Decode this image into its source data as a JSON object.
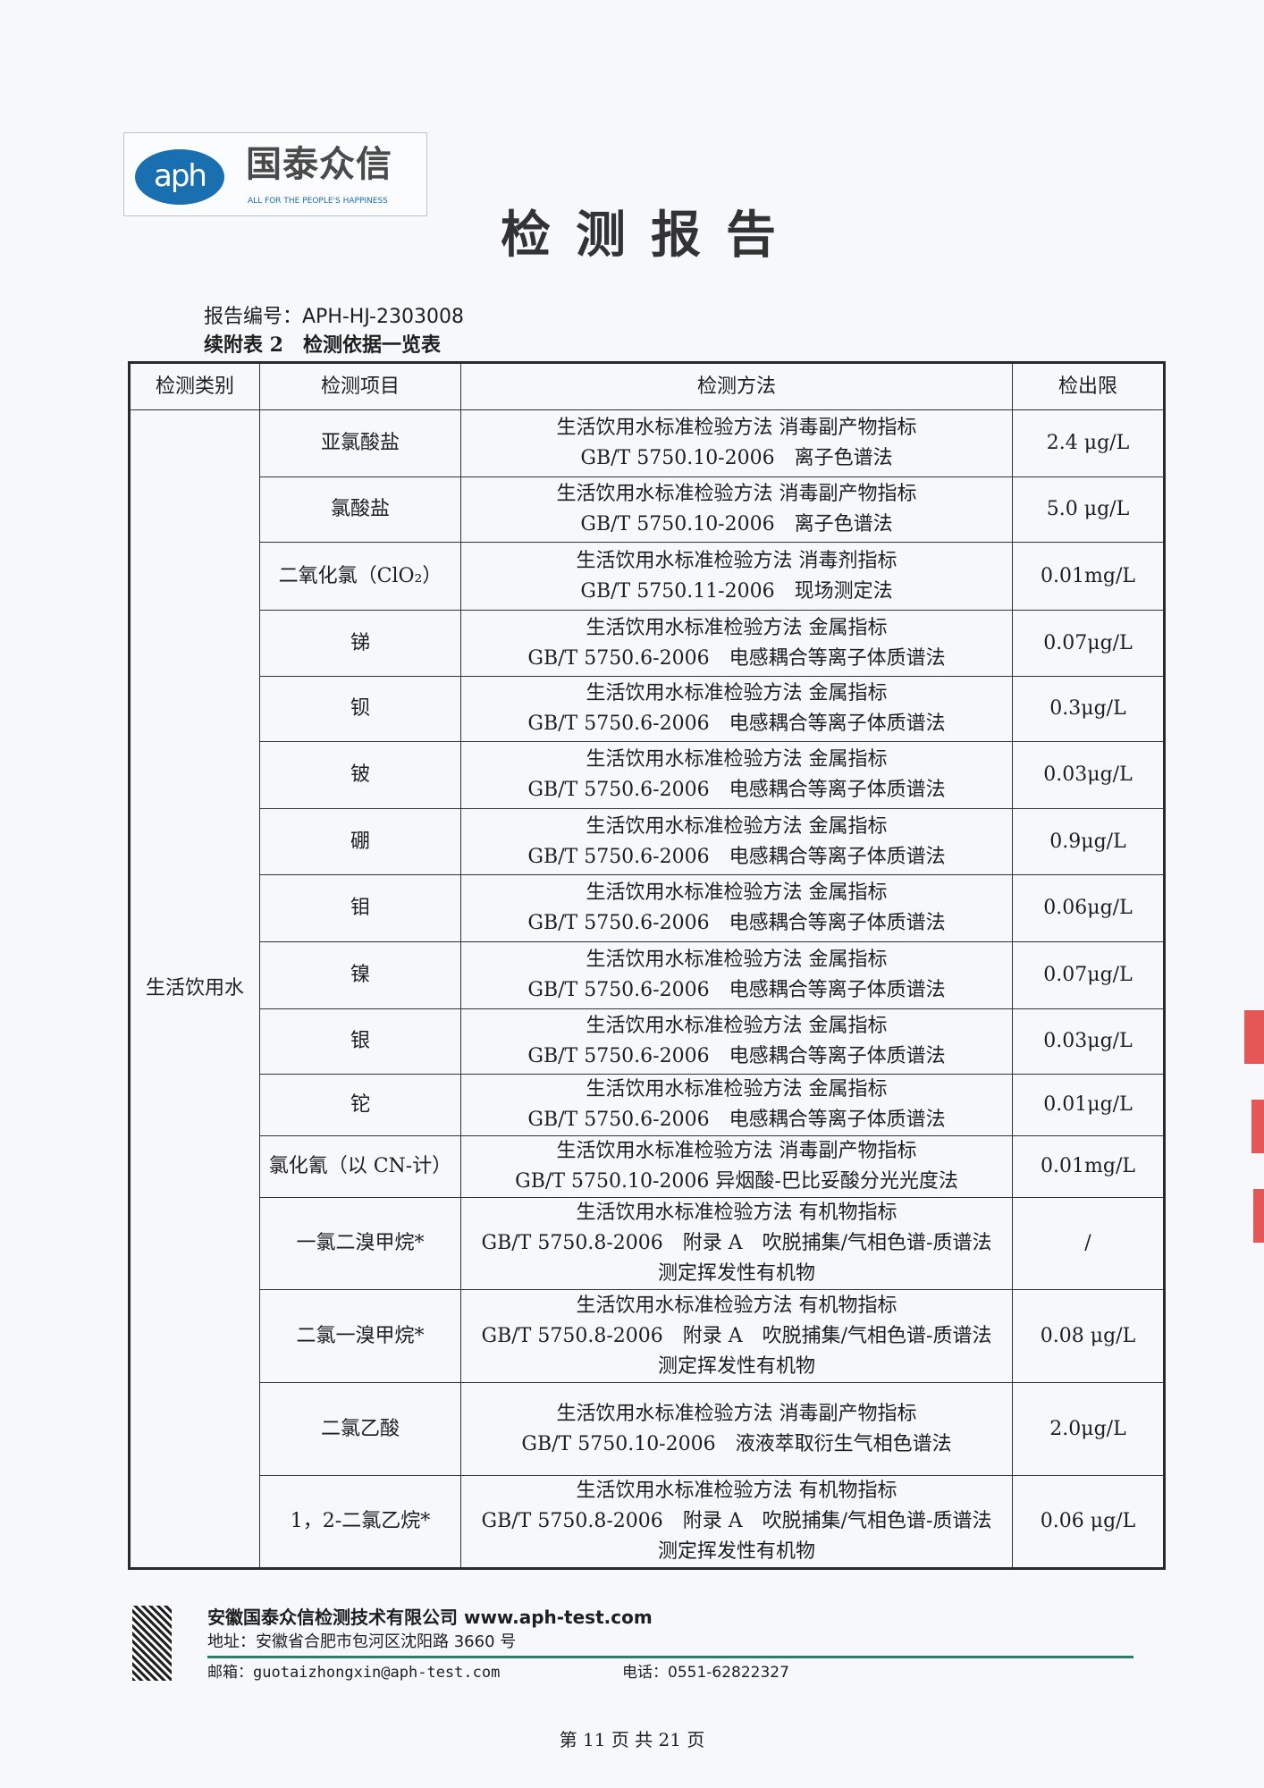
{
  "logo": {
    "mark": "aph",
    "name_cn": "国泰众信",
    "slogan": "ALL FOR THE PEOPLE'S HAPPINESS"
  },
  "title": "检测报告",
  "report_number": "报告编号：APH-HJ-2303008",
  "table_caption": "续附表 2　检测依据一览表",
  "table": {
    "headers": [
      "检测类别",
      "检测项目",
      "检测方法",
      "检出限"
    ],
    "category": "生活饮用水",
    "rows": [
      {
        "item": "亚氯酸盐",
        "method": [
          "生活饮用水标准检验方法  消毒副产物指标",
          "GB/T 5750.10-2006　离子色谱法"
        ],
        "limit": "2.4 μg/L"
      },
      {
        "item": "氯酸盐",
        "method": [
          "生活饮用水标准检验方法  消毒副产物指标",
          "GB/T 5750.10-2006　离子色谱法"
        ],
        "limit": "5.0 μg/L"
      },
      {
        "item": "二氧化氯（ClO₂）",
        "method": [
          "生活饮用水标准检验方法  消毒剂指标",
          "GB/T 5750.11-2006　现场测定法"
        ],
        "limit": "0.01mg/L"
      },
      {
        "item": "锑",
        "method": [
          "生活饮用水标准检验方法  金属指标",
          "GB/T 5750.6-2006　电感耦合等离子体质谱法"
        ],
        "limit": "0.07μg/L"
      },
      {
        "item": "钡",
        "method": [
          "生活饮用水标准检验方法  金属指标",
          "GB/T 5750.6-2006　电感耦合等离子体质谱法"
        ],
        "limit": "0.3μg/L"
      },
      {
        "item": "铍",
        "method": [
          "生活饮用水标准检验方法  金属指标",
          "GB/T 5750.6-2006　电感耦合等离子体质谱法"
        ],
        "limit": "0.03μg/L"
      },
      {
        "item": "硼",
        "method": [
          "生活饮用水标准检验方法  金属指标",
          "GB/T 5750.6-2006　电感耦合等离子体质谱法"
        ],
        "limit": "0.9μg/L"
      },
      {
        "item": "钼",
        "method": [
          "生活饮用水标准检验方法  金属指标",
          "GB/T 5750.6-2006　电感耦合等离子体质谱法"
        ],
        "limit": "0.06μg/L"
      },
      {
        "item": "镍",
        "method": [
          "生活饮用水标准检验方法  金属指标",
          "GB/T 5750.6-2006　电感耦合等离子体质谱法"
        ],
        "limit": "0.07μg/L"
      },
      {
        "item": "银",
        "method": [
          "生活饮用水标准检验方法  金属指标",
          "GB/T  5750.6-2006　电感耦合等离子体质谱法"
        ],
        "limit": "0.03μg/L"
      },
      {
        "item": "铊",
        "method": [
          "生活饮用水标准检验方法  金属指标",
          "GB/T  5750.6-2006　电感耦合等离子体质谱法"
        ],
        "limit": "0.01μg/L"
      },
      {
        "item": "氯化氰（以 CN-计）",
        "method": [
          "生活饮用水标准检验方法  消毒副产物指标",
          "GB/T  5750.10-2006 异烟酸-巴比妥酸分光光度法"
        ],
        "limit": "0.01mg/L"
      },
      {
        "item": "一氯二溴甲烷*",
        "method": [
          "生活饮用水标准检验方法  有机物指标",
          "GB/T  5750.8-2006　附录 A　吹脱捕集/气相色谱-质谱法",
          "测定挥发性有机物"
        ],
        "limit": "/"
      },
      {
        "item": "二氯一溴甲烷*",
        "method": [
          "生活饮用水标准检验方法  有机物指标",
          "GB/T  5750.8-2006　附录 A　吹脱捕集/气相色谱-质谱法",
          "测定挥发性有机物"
        ],
        "limit": "0.08 μg/L"
      },
      {
        "item": "二氯乙酸",
        "method": [
          "生活饮用水标准检验方法  消毒副产物指标",
          "GB/T  5750.10-2006　液液萃取衍生气相色谱法"
        ],
        "limit": "2.0μg/L"
      },
      {
        "item": "1，2-二氯乙烷*",
        "method": [
          "生活饮用水标准检验方法  有机物指标",
          "GB/T  5750.8-2006　附录 A　吹脱捕集/气相色谱-质谱法",
          "测定挥发性有机物"
        ],
        "limit": "0.06  μg/L"
      }
    ]
  },
  "footer": {
    "company": "安徽国泰众信检测技术有限公司 www.aph-test.com",
    "address": "地址：安徽省合肥市包河区沈阳路 3660 号",
    "email": "邮箱：guotaizhongxin@aph-test.com",
    "phone": "电话：0551-62822327",
    "page": "第 11 页 共 21 页"
  },
  "colors": {
    "brand_blue": "#1a6fb0",
    "footer_rule": "#2e7d6b",
    "stamp_red": "#e23a3a"
  }
}
